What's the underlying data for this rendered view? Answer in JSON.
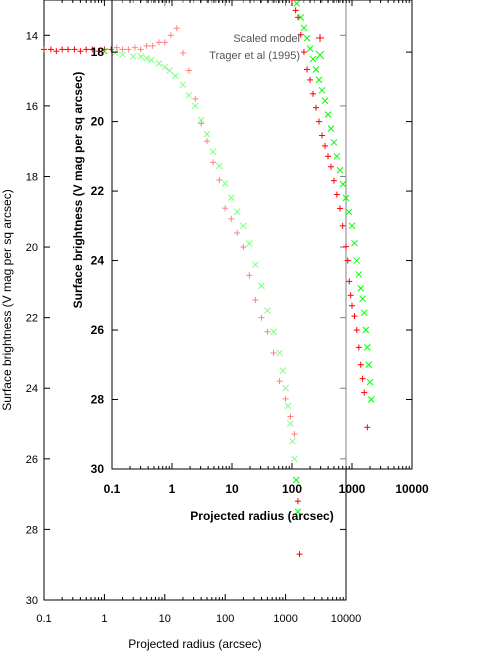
{
  "chart_data": [
    {
      "id": "back",
      "type": "scatter",
      "xscale": "log",
      "xlim": [
        0.1,
        10000
      ],
      "ylim": [
        30,
        13
      ],
      "xticks": [
        "0.1",
        "1",
        "10",
        "100",
        "1000",
        "10000"
      ],
      "yticks": [
        "14",
        "16",
        "18",
        "20",
        "22",
        "24",
        "26",
        "28",
        "30"
      ],
      "xlabel": "Projected radius (arcsec)",
      "ylabel": "Surface brightness (V mag per sq arcsec)",
      "series": [
        {
          "color": "#ff0000",
          "marker": "+",
          "points": [
            [
              0.1,
              14.4
            ],
            [
              0.13,
              14.4
            ],
            [
              0.16,
              14.45
            ],
            [
              0.2,
              14.4
            ],
            [
              0.25,
              14.4
            ],
            [
              0.32,
              14.4
            ],
            [
              0.4,
              14.45
            ],
            [
              0.5,
              14.4
            ],
            [
              0.63,
              14.4
            ],
            [
              0.8,
              14.45
            ],
            [
              1.0,
              14.4
            ],
            [
              1.3,
              14.4
            ],
            [
              1.6,
              14.35
            ],
            [
              2.0,
              14.4
            ],
            [
              2.5,
              14.4
            ],
            [
              3.2,
              14.35
            ],
            [
              4.0,
              14.4
            ],
            [
              5.0,
              14.3
            ],
            [
              6.3,
              14.3
            ],
            [
              8.0,
              14.2
            ],
            [
              10,
              14.2
            ],
            [
              12.6,
              14.0
            ],
            [
              15.8,
              13.8
            ],
            [
              20,
              14.5
            ],
            [
              25,
              15.0
            ],
            [
              32,
              15.8
            ],
            [
              40,
              16.5
            ],
            [
              50,
              17.0
            ],
            [
              63,
              17.6
            ],
            [
              80,
              18.1
            ],
            [
              100,
              18.9
            ],
            [
              126,
              19.2
            ],
            [
              158,
              19.6
            ],
            [
              200,
              20.0
            ],
            [
              251,
              20.8
            ],
            [
              316,
              21.5
            ],
            [
              398,
              22.0
            ],
            [
              500,
              22.4
            ],
            [
              631,
              23.0
            ],
            [
              794,
              23.8
            ],
            [
              1000,
              24.3
            ],
            [
              1200,
              24.8
            ],
            [
              1400,
              25.3
            ],
            [
              1600,
              27.2
            ],
            [
              1700,
              28.7
            ]
          ]
        },
        {
          "color": "#00ff00",
          "marker": "x",
          "points": [
            [
              1.0,
              14.45
            ],
            [
              1.5,
              14.5
            ],
            [
              2.0,
              14.55
            ],
            [
              3.0,
              14.6
            ],
            [
              4.0,
              14.6
            ],
            [
              5.0,
              14.65
            ],
            [
              6.0,
              14.7
            ],
            [
              8.0,
              14.8
            ],
            [
              10,
              14.9
            ],
            [
              12,
              15.0
            ],
            [
              15,
              15.15
            ],
            [
              20,
              15.4
            ],
            [
              25,
              15.7
            ],
            [
              32,
              16.0
            ],
            [
              40,
              16.4
            ],
            [
              50,
              16.8
            ],
            [
              63,
              17.3
            ],
            [
              80,
              17.7
            ],
            [
              100,
              18.2
            ],
            [
              126,
              18.6
            ],
            [
              158,
              19.0
            ],
            [
              200,
              19.4
            ],
            [
              251,
              19.9
            ],
            [
              316,
              20.5
            ],
            [
              398,
              21.1
            ],
            [
              500,
              21.8
            ],
            [
              631,
              22.4
            ],
            [
              794,
              23.0
            ],
            [
              900,
              23.5
            ],
            [
              1000,
              24.0
            ],
            [
              1100,
              24.5
            ],
            [
              1200,
              25.0
            ],
            [
              1300,
              25.5
            ],
            [
              1400,
              26.0
            ],
            [
              1500,
              26.6
            ],
            [
              1600,
              27.5
            ]
          ]
        }
      ]
    },
    {
      "id": "front",
      "type": "scatter",
      "xscale": "log",
      "xlim": [
        0.1,
        10000
      ],
      "ylim": [
        30,
        16.5
      ],
      "xticks": [
        "0.1",
        "1",
        "10",
        "100",
        "1000",
        "10000"
      ],
      "yticks": [
        "18",
        "20",
        "22",
        "24",
        "26",
        "28",
        "30"
      ],
      "xlabel": "Projected radius (arcsec)",
      "ylabel": "Surface brightness (V mag per sq arcsec)",
      "legend": [
        {
          "label": "Scaled model",
          "color": "#ff0000",
          "marker": "+"
        },
        {
          "label": "Trager et al (1995)",
          "color": "#00ff00",
          "marker": "x"
        }
      ],
      "legend_position": "top-right",
      "series": [
        {
          "color": "#ff0000",
          "marker": "+",
          "points": [
            [
              100,
              16.5
            ],
            [
              115,
              16.8
            ],
            [
              126,
              17.0
            ],
            [
              140,
              17.5
            ],
            [
              158,
              18.0
            ],
            [
              178,
              18.5
            ],
            [
              200,
              18.8
            ],
            [
              224,
              19.2
            ],
            [
              251,
              19.6
            ],
            [
              282,
              20.0
            ],
            [
              316,
              20.4
            ],
            [
              355,
              20.7
            ],
            [
              398,
              21.0
            ],
            [
              447,
              21.3
            ],
            [
              500,
              21.7
            ],
            [
              560,
              22.1
            ],
            [
              631,
              22.5
            ],
            [
              700,
              23.0
            ],
            [
              794,
              23.6
            ],
            [
              850,
              24.0
            ],
            [
              900,
              24.6
            ],
            [
              950,
              25.0
            ],
            [
              1000,
              25.3
            ],
            [
              1100,
              25.6
            ],
            [
              1200,
              26.0
            ],
            [
              1300,
              26.5
            ],
            [
              1400,
              27.0
            ],
            [
              1500,
              27.4
            ],
            [
              1600,
              27.8
            ],
            [
              1800,
              28.8
            ]
          ]
        },
        {
          "color": "#00ff00",
          "marker": "x",
          "points": [
            [
              120,
              16.6
            ],
            [
              140,
              17.0
            ],
            [
              158,
              17.3
            ],
            [
              178,
              17.6
            ],
            [
              200,
              17.9
            ],
            [
              224,
              18.2
            ],
            [
              251,
              18.5
            ],
            [
              282,
              18.8
            ],
            [
              316,
              19.1
            ],
            [
              355,
              19.4
            ],
            [
              398,
              19.8
            ],
            [
              447,
              20.2
            ],
            [
              500,
              20.6
            ],
            [
              560,
              21.0
            ],
            [
              631,
              21.4
            ],
            [
              708,
              21.8
            ],
            [
              794,
              22.2
            ],
            [
              891,
              22.6
            ],
            [
              1000,
              23.0
            ],
            [
              1100,
              23.5
            ],
            [
              1200,
              24.0
            ],
            [
              1300,
              24.4
            ],
            [
              1400,
              24.8
            ],
            [
              1500,
              25.1
            ],
            [
              1600,
              25.5
            ],
            [
              1700,
              26.0
            ],
            [
              1800,
              26.5
            ],
            [
              1900,
              27.0
            ],
            [
              2000,
              27.5
            ],
            [
              2100,
              28.0
            ]
          ]
        }
      ]
    }
  ]
}
